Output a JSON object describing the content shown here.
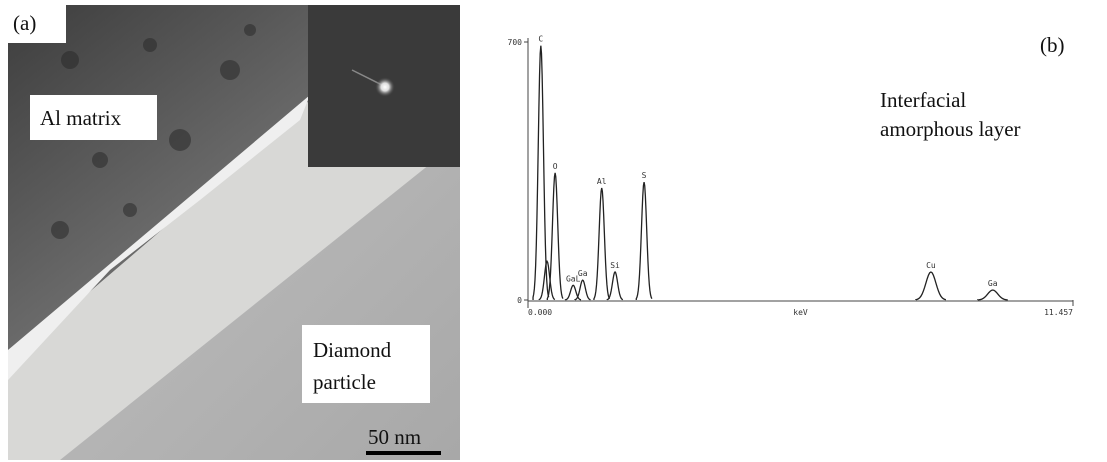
{
  "panel_a": {
    "label": "(a)",
    "matrix_label": "Al matrix",
    "particle_label": [
      "Diamond",
      "particle"
    ],
    "scale_bar": "50 nm"
  },
  "chart_data": {
    "type": "spectrum",
    "panel_label": "(b)",
    "annotation": [
      "Interfacial",
      "amorphous layer"
    ],
    "xlabel": "keV",
    "xlim": [
      0,
      11.457
    ],
    "xticks": [
      {
        "value": 0,
        "label": "0.000"
      },
      {
        "value": 11.457,
        "label": "11.457"
      }
    ],
    "ylim": [
      0,
      700
    ],
    "yticks": [
      0,
      700
    ],
    "color": "#222222",
    "peaks": [
      {
        "label": "C",
        "x": 0.27,
        "value": 690
      },
      {
        "label": null,
        "x": 0.4,
        "value": 105
      },
      {
        "label": "O",
        "x": 0.57,
        "value": 345
      },
      {
        "label": "GaL",
        "x": 0.95,
        "value": 40
      },
      {
        "label": "Ga",
        "x": 1.15,
        "value": 54
      },
      {
        "label": "Al",
        "x": 1.55,
        "value": 304
      },
      {
        "label": "Si",
        "x": 1.83,
        "value": 76
      },
      {
        "label": "S",
        "x": 2.44,
        "value": 320
      },
      {
        "label": "Cu",
        "x": 8.47,
        "value": 76
      },
      {
        "label": "Ga",
        "x": 9.77,
        "value": 27
      }
    ]
  }
}
